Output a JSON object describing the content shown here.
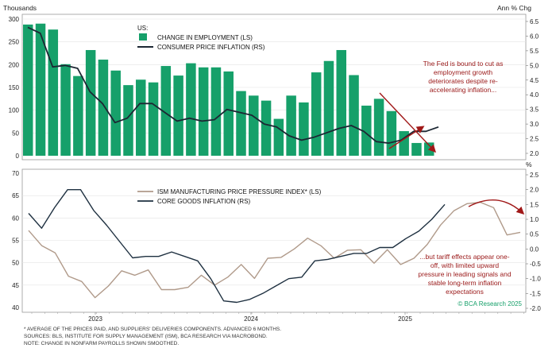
{
  "chart_data": [
    {
      "type": "bar",
      "title": "US:",
      "left_axis_unit": "Thousands",
      "right_axis_unit": "Ann % Chg",
      "ylim_left": [
        0,
        300
      ],
      "ylim_right": [
        2.0,
        6.5
      ],
      "yticks_left": [
        "0",
        "50",
        "100",
        "150",
        "200",
        "250",
        "300"
      ],
      "yticks_right": [
        "2.0",
        "2.5",
        "3.0",
        "3.5",
        "4.0",
        "4.5",
        "5.0",
        "5.5",
        "6.0",
        "6.5"
      ],
      "bar_color": "#16a06a",
      "line_color": "#1c2733",
      "series": [
        {
          "name": "CHANGE IN EMPLOYMENT (LS)",
          "values": [
            288,
            290,
            277,
            201,
            175,
            232,
            211,
            187,
            155,
            167,
            161,
            197,
            176,
            203,
            194,
            194,
            185,
            142,
            132,
            121,
            81,
            132,
            117,
            183,
            208,
            232,
            177,
            110,
            125,
            98,
            54,
            28,
            29
          ]
        },
        {
          "name": "CONSUMER PRICE INFLATION (RS)",
          "values": [
            6.3,
            6.1,
            4.95,
            5.0,
            4.9,
            4.1,
            3.7,
            3.05,
            3.2,
            3.7,
            3.7,
            3.4,
            3.1,
            3.2,
            3.1,
            3.15,
            3.5,
            3.4,
            3.3,
            3.0,
            2.9,
            2.6,
            2.45,
            2.55,
            2.7,
            2.85,
            2.95,
            2.75,
            2.4,
            2.35,
            2.45,
            2.75,
            2.75,
            2.9
          ]
        }
      ],
      "annotation": [
        "The Fed is bound to cut as",
        "employment growth",
        "deteriorates despite re-",
        "accelerating inflation..."
      ]
    },
    {
      "type": "line",
      "ylim_left": [
        40,
        70
      ],
      "ylim_right": [
        -2.0,
        2.5
      ],
      "yticks_left": [
        "40",
        "45",
        "50",
        "55",
        "60",
        "65",
        "70"
      ],
      "yticks_right": [
        "-2.0",
        "-1.5",
        "-1.0",
        "-0.5",
        "0.0",
        "0.5",
        "1.0",
        "1.5",
        "2.0",
        "2.5"
      ],
      "right_axis_unit": "%",
      "x_tick_labels": [
        "2023",
        "2024",
        "2025"
      ],
      "series": [
        {
          "name": "ISM MANUFACTURING PRICE PRESSURE INDEX* (LS)",
          "color": "#b09a8a",
          "values": [
            57.2,
            53.8,
            52.2,
            47,
            45.8,
            42.2,
            44.8,
            48.2,
            47.2,
            48.4,
            44,
            44,
            44.5,
            47.2,
            45,
            46.8,
            49.6,
            46.5,
            51,
            51.2,
            53.1,
            55.5,
            53.8,
            51,
            52.8,
            52.9,
            49.9,
            52.9,
            49.6,
            51,
            54.1,
            58.4,
            61.6,
            63.2,
            63.5,
            62.3,
            56.2,
            56.8
          ]
        },
        {
          "name": "CORE GOODS INFLATION (RS)",
          "color": "#1e3040",
          "values": [
            1.2,
            0.7,
            1.4,
            2.0,
            2.0,
            1.3,
            0.8,
            0.25,
            -0.3,
            -0.25,
            -0.25,
            -0.1,
            -0.25,
            -0.4,
            -1.0,
            -1.75,
            -1.8,
            -1.7,
            -1.5,
            -1.25,
            -1.0,
            -0.95,
            -0.4,
            -0.35,
            -0.25,
            -0.15,
            -0.15,
            0.05,
            0.05,
            0.35,
            0.6,
            1.0,
            1.5
          ]
        }
      ],
      "annotation": [
        "...but tariff effects appear one-",
        "off, with limited upward",
        "pressure in leading signals and",
        "stable long-term inflation",
        "expectations"
      ],
      "credit": "© BCA Research 2025"
    }
  ],
  "footnotes": [
    "* AVERAGE OF THE PRICES PAID, AND SUPPLIERS' DELIVERIES COMPONENTS. ADVANCED 6 MONTHS.",
    "SOURCES: BLS, INSTITUTE FOR SUPPLY MANAGEMENT (ISM), BCA RESEARCH VIA MACROBOND.",
    "NOTE: CHANGE IN NONFARM PAYROLLS SHOWN SMOOTHED."
  ],
  "colors": {
    "arrow": "#a01818",
    "annotation_text": "#9a1818",
    "grid": "#e3e3e3"
  }
}
